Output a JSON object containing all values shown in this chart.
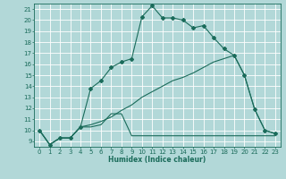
{
  "xlabel": "Humidex (Indice chaleur)",
  "background_color": "#b2d8d8",
  "grid_color": "#ffffff",
  "line_color": "#1a6b5a",
  "xlim": [
    -0.5,
    23.5
  ],
  "ylim": [
    8.5,
    21.5
  ],
  "xticks": [
    0,
    1,
    2,
    3,
    4,
    5,
    6,
    7,
    8,
    9,
    10,
    11,
    12,
    13,
    14,
    15,
    16,
    17,
    18,
    19,
    20,
    21,
    22,
    23
  ],
  "yticks": [
    9,
    10,
    11,
    12,
    13,
    14,
    15,
    16,
    17,
    18,
    19,
    20,
    21
  ],
  "line1_x": [
    0,
    1,
    2,
    3,
    4,
    5,
    6,
    7,
    8,
    9,
    10,
    11,
    12,
    13,
    14,
    15,
    16,
    17,
    18,
    19,
    20,
    21,
    22,
    23
  ],
  "line1_y": [
    10.0,
    8.7,
    9.3,
    9.3,
    10.3,
    13.8,
    14.5,
    15.7,
    16.2,
    16.5,
    20.3,
    21.3,
    20.2,
    20.2,
    20.0,
    19.3,
    19.5,
    18.4,
    17.4,
    16.8,
    15.0,
    11.9,
    10.0,
    9.7
  ],
  "line2_x": [
    0,
    1,
    2,
    3,
    4,
    5,
    6,
    7,
    8,
    9,
    10,
    11,
    12,
    13,
    14,
    15,
    16,
    17,
    18,
    19,
    20,
    21,
    22,
    23
  ],
  "line2_y": [
    10.0,
    8.7,
    9.3,
    9.3,
    10.3,
    10.3,
    10.5,
    11.5,
    11.5,
    9.5,
    9.5,
    9.5,
    9.5,
    9.5,
    9.5,
    9.5,
    9.5,
    9.5,
    9.5,
    9.5,
    9.5,
    9.5,
    9.5,
    9.5
  ],
  "line3_x": [
    0,
    1,
    2,
    3,
    4,
    5,
    6,
    7,
    8,
    9,
    10,
    11,
    12,
    13,
    14,
    15,
    16,
    17,
    18,
    19,
    20,
    21,
    22,
    23
  ],
  "line3_y": [
    10.0,
    8.7,
    9.3,
    9.3,
    10.3,
    10.5,
    10.8,
    11.2,
    11.8,
    12.3,
    13.0,
    13.5,
    14.0,
    14.5,
    14.8,
    15.2,
    15.7,
    16.2,
    16.5,
    16.8,
    15.0,
    11.9,
    10.0,
    9.7
  ]
}
